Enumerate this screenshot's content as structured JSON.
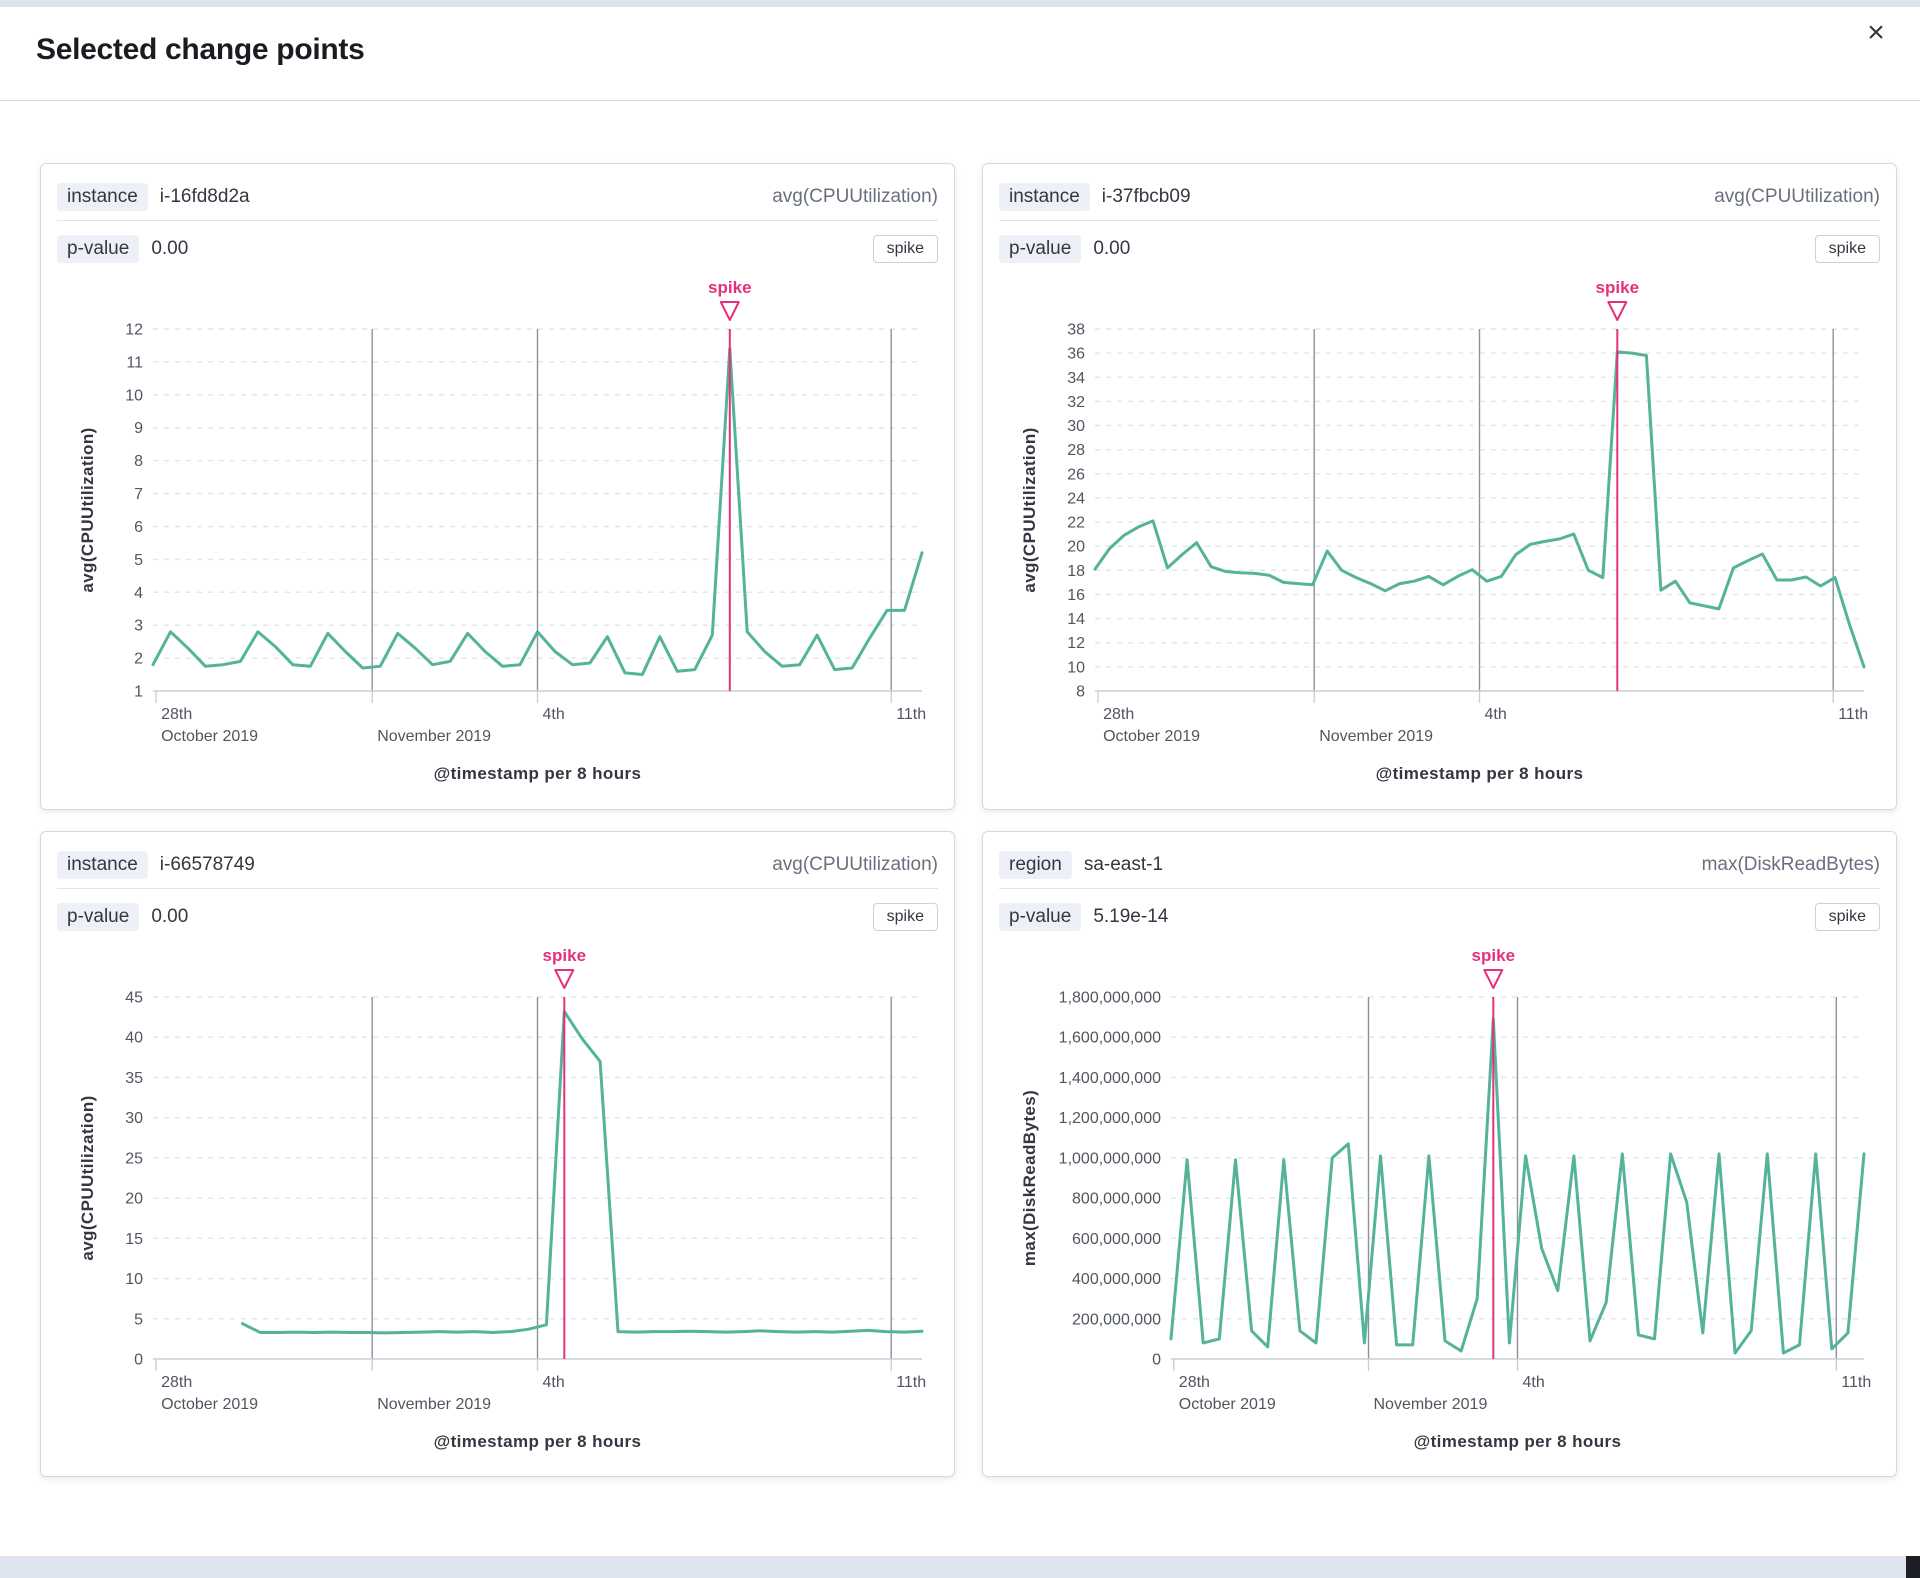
{
  "modal": {
    "title": "Selected change points",
    "close_glyph": "×"
  },
  "colors": {
    "line": "#54B399",
    "annotation": "#E5307C",
    "grid": "#E2E6EE",
    "dark_grid": "#8B929C",
    "axis": "#C9CFD9"
  },
  "cards": [
    {
      "field_label": "instance",
      "field_value": "i-16fd8d2a",
      "metric": "avg(CPUUtilization)",
      "p_label": "p-value",
      "p_value": "0.00",
      "change_type": "spike",
      "chart_data": {
        "type": "line",
        "title": "",
        "ylabel": "avg(CPUUtilization)",
        "xlabel": "@timestamp per 8 hours",
        "ylim": [
          1,
          12
        ],
        "ystep": 1,
        "y_format": "plain",
        "y_axis_width": 44,
        "grid": "dashed",
        "x_axis_marks": [
          {
            "line1": "28th",
            "line2": "October 2019",
            "frac": 0.004,
            "grid": false
          },
          {
            "line1": "",
            "line2": "November 2019",
            "frac": 0.285,
            "grid": true
          },
          {
            "line1": "4th",
            "line2": "",
            "frac": 0.5,
            "grid": true
          },
          {
            "line1": "11th",
            "line2": "",
            "frac": 0.96,
            "grid": true
          }
        ],
        "annotation": {
          "label": "spike",
          "index": 33
        },
        "values": [
          1.8,
          2.8,
          2.3,
          1.75,
          1.8,
          1.9,
          2.8,
          2.35,
          1.8,
          1.75,
          2.75,
          2.2,
          1.7,
          1.75,
          2.75,
          2.3,
          1.8,
          1.9,
          2.75,
          2.2,
          1.75,
          1.8,
          2.8,
          2.2,
          1.8,
          1.85,
          2.65,
          1.55,
          1.5,
          2.65,
          1.6,
          1.65,
          2.7,
          11.4,
          2.8,
          2.2,
          1.75,
          1.8,
          2.7,
          1.65,
          1.7,
          2.6,
          3.45,
          3.45,
          5.2
        ]
      }
    },
    {
      "field_label": "instance",
      "field_value": "i-37fbcb09",
      "metric": "avg(CPUUtilization)",
      "p_label": "p-value",
      "p_value": "0.00",
      "change_type": "spike",
      "chart_data": {
        "type": "line",
        "title": "",
        "ylabel": "avg(CPUUtilization)",
        "xlabel": "@timestamp per 8 hours",
        "ylim": [
          8,
          38
        ],
        "ystep": 2,
        "y_format": "plain",
        "y_axis_width": 44,
        "grid": "dashed",
        "x_axis_marks": [
          {
            "line1": "28th",
            "line2": "October 2019",
            "frac": 0.004,
            "grid": false
          },
          {
            "line1": "",
            "line2": "November 2019",
            "frac": 0.285,
            "grid": true
          },
          {
            "line1": "4th",
            "line2": "",
            "frac": 0.5,
            "grid": true
          },
          {
            "line1": "11th",
            "line2": "",
            "frac": 0.96,
            "grid": true
          }
        ],
        "annotation": {
          "label": "spike",
          "index": 36
        },
        "values": [
          18.1,
          19.8,
          20.9,
          21.6,
          22.1,
          18.2,
          19.3,
          20.3,
          18.3,
          17.9,
          17.8,
          17.75,
          17.6,
          17.0,
          16.9,
          16.8,
          19.6,
          18.0,
          17.4,
          16.9,
          16.3,
          16.9,
          17.1,
          17.5,
          16.8,
          17.5,
          18.05,
          17.1,
          17.5,
          19.3,
          20.15,
          20.4,
          20.6,
          21.0,
          18.0,
          17.4,
          36.1,
          36.0,
          35.8,
          16.35,
          17.1,
          15.3,
          15.05,
          14.8,
          18.2,
          18.8,
          19.35,
          17.2,
          17.2,
          17.45,
          16.7,
          17.4,
          13.5,
          10.0
        ]
      }
    },
    {
      "field_label": "instance",
      "field_value": "i-66578749",
      "metric": "avg(CPUUtilization)",
      "p_label": "p-value",
      "p_value": "0.00",
      "change_type": "spike",
      "chart_data": {
        "type": "line",
        "title": "",
        "ylabel": "avg(CPUUtilization)",
        "xlabel": "@timestamp per 8 hours",
        "ylim": [
          0,
          45
        ],
        "ystep": 5,
        "y_format": "plain",
        "y_axis_width": 44,
        "grid": "dashed",
        "x_axis_marks": [
          {
            "line1": "28th",
            "line2": "October 2019",
            "frac": 0.004,
            "grid": false
          },
          {
            "line1": "",
            "line2": "November 2019",
            "frac": 0.285,
            "grid": true
          },
          {
            "line1": "4th",
            "line2": "",
            "frac": 0.5,
            "grid": true
          },
          {
            "line1": "11th",
            "line2": "",
            "frac": 0.96,
            "grid": true
          }
        ],
        "annotation": {
          "label": "spike",
          "index": 23
        },
        "values": [
          null,
          null,
          null,
          null,
          null,
          4.4,
          3.3,
          3.3,
          3.35,
          3.3,
          3.35,
          3.3,
          3.3,
          3.25,
          3.3,
          3.35,
          3.4,
          3.35,
          3.4,
          3.3,
          3.4,
          3.7,
          4.25,
          43.2,
          39.8,
          37.0,
          3.4,
          3.35,
          3.4,
          3.4,
          3.45,
          3.4,
          3.35,
          3.4,
          3.5,
          3.4,
          3.35,
          3.4,
          3.35,
          3.45,
          3.55,
          3.4,
          3.35,
          3.45
        ]
      }
    },
    {
      "field_label": "region",
      "field_value": "sa-east-1",
      "metric": "max(DiskReadBytes)",
      "p_label": "p-value",
      "p_value": "5.19e-14",
      "change_type": "spike",
      "chart_data": {
        "type": "line",
        "title": "",
        "ylabel": "max(DiskReadBytes)",
        "xlabel": "@timestamp per 8 hours",
        "ylim": [
          0,
          1800000000
        ],
        "ystep": 200000000,
        "y_format": "comma",
        "y_axis_width": 120,
        "grid": "dashed",
        "x_axis_marks": [
          {
            "line1": "28th",
            "line2": "October 2019",
            "frac": 0.004,
            "grid": false
          },
          {
            "line1": "",
            "line2": "November 2019",
            "frac": 0.285,
            "grid": true
          },
          {
            "line1": "4th",
            "line2": "",
            "frac": 0.5,
            "grid": true
          },
          {
            "line1": "11th",
            "line2": "",
            "frac": 0.96,
            "grid": true
          }
        ],
        "annotation": {
          "label": "spike",
          "index": 20
        },
        "values": [
          100000000,
          990000000,
          80000000,
          100000000,
          990000000,
          140000000,
          60000000,
          990000000,
          140000000,
          80000000,
          1000000000,
          1070000000,
          80000000,
          1010000000,
          70000000,
          70000000,
          1010000000,
          90000000,
          40000000,
          300000000,
          1690000000,
          80000000,
          1010000000,
          550000000,
          340000000,
          1010000000,
          90000000,
          280000000,
          1020000000,
          120000000,
          100000000,
          1020000000,
          780000000,
          130000000,
          1020000000,
          30000000,
          140000000,
          1020000000,
          30000000,
          70000000,
          1020000000,
          50000000,
          130000000,
          1020000000
        ]
      }
    }
  ]
}
